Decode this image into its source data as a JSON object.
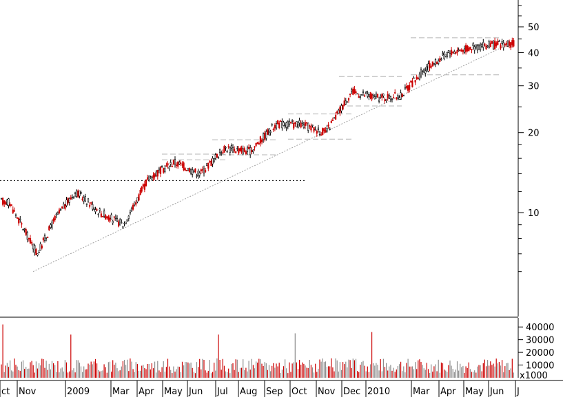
{
  "chart_data": [
    {
      "type": "candlestick",
      "panel": "price",
      "y_scale": "log",
      "ylim": [
        5.0,
        60.0
      ],
      "y_ticks": [
        10,
        20,
        30,
        40,
        50
      ],
      "y_tick_labels": [
        "10",
        "20",
        "30",
        "40",
        "50"
      ],
      "grid": false,
      "x_period": [
        "2008-10",
        "2010-06"
      ],
      "colors": {
        "up_candle": "#000000",
        "down_candle": "#cc0000",
        "trendline": "#a0a0a0",
        "resistance_line": "#000000",
        "range_lines": "#b4b4b4"
      },
      "annotations": [
        {
          "kind": "horizontal_dotted",
          "value": 13.2,
          "from": "2008-10",
          "to": "2009-10"
        },
        {
          "kind": "trendline_dotted",
          "from_value": 6.0,
          "to_value": 44.0,
          "from": "2008-11",
          "to": "2010-06"
        },
        {
          "kind": "range_box_dashed",
          "from_value": 15.8,
          "to_value": 16.6,
          "from": "2009-05",
          "to": "2009-07"
        },
        {
          "kind": "range_box_dashed",
          "from_value": 16.5,
          "to_value": 18.8,
          "from": "2009-07",
          "to": "2009-09"
        },
        {
          "kind": "range_box_dashed",
          "from_value": 18.9,
          "to_value": 23.5,
          "from": "2009-10",
          "to": "2009-12"
        },
        {
          "kind": "range_box_dashed",
          "from_value": 25.2,
          "to_value": 32.5,
          "from": "2009-12",
          "to": "2010-02"
        },
        {
          "kind": "range_box_dashed",
          "from_value": 33.0,
          "to_value": 45.5,
          "from": "2010-03",
          "to": "2010-06"
        }
      ],
      "monthly_closes": {
        "x": [
          "2008-10",
          "2008-11",
          "2008-12",
          "2009-01",
          "2009-02",
          "2009-03",
          "2009-04",
          "2009-05",
          "2009-06",
          "2009-07",
          "2009-08",
          "2009-09",
          "2009-10",
          "2009-11",
          "2009-12",
          "2010-01",
          "2010-02",
          "2010-03",
          "2010-04",
          "2010-05",
          "2010-06"
        ],
        "y": [
          11.0,
          7.0,
          9.5,
          12.0,
          10.0,
          9.0,
          13.5,
          15.5,
          14.0,
          17.5,
          17.0,
          21.5,
          21.5,
          20.0,
          28.5,
          27.0,
          27.5,
          34.0,
          40.0,
          42.0,
          43.0
        ]
      }
    },
    {
      "type": "bar",
      "panel": "volume",
      "ylim": [
        0,
        45000
      ],
      "y_ticks": [
        10000,
        20000,
        30000,
        40000
      ],
      "y_tick_labels": [
        "10000",
        "20000",
        "30000",
        "40000"
      ],
      "unit_label": "x1000",
      "colors": {
        "up_bar": "#8c8c8c",
        "down_bar": "#cc0000"
      },
      "typical_volume": 9000,
      "spikes": [
        {
          "x": "2008-10",
          "y": 42000
        },
        {
          "x": "2009-01",
          "y": 34000
        },
        {
          "x": "2009-07",
          "y": 34000
        },
        {
          "x": "2009-10",
          "y": 35000
        },
        {
          "x": "2010-01",
          "y": 36000
        }
      ]
    }
  ],
  "x_axis": {
    "labels": [
      "ct",
      "Nov",
      "2009",
      "Mar",
      "Apr",
      "May",
      "Jun",
      "Jul",
      "Aug",
      "Sep",
      "Oct",
      "Nov",
      "Dec",
      "2010",
      "Mar",
      "Apr",
      "May",
      "Jun",
      "J"
    ]
  }
}
